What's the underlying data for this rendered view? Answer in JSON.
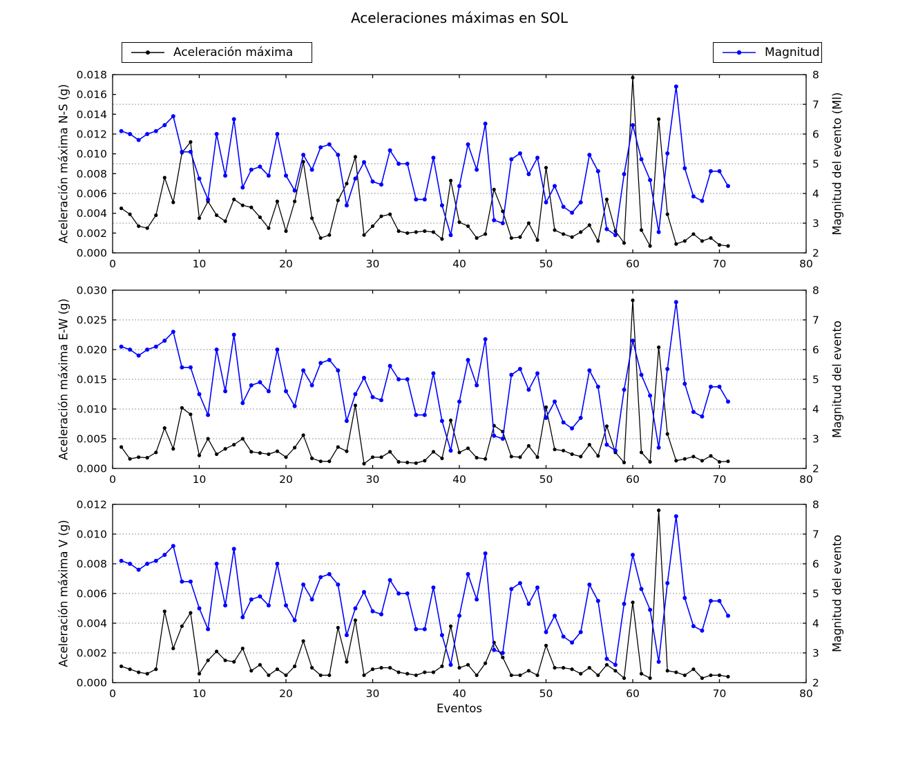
{
  "title": "Aceleraciones máximas en SOL",
  "xlabel": "Eventos",
  "legend": {
    "left": {
      "label": "Aceleración máxima",
      "color": "#000000"
    },
    "right": {
      "label": "Magnitud",
      "color": "#0000ff"
    }
  },
  "colors": {
    "acceleration": "#000000",
    "magnitude": "#0000ff",
    "grid": "#777777"
  },
  "x_ticks": [
    "0",
    "10",
    "20",
    "30",
    "40",
    "50",
    "60",
    "70",
    "80"
  ],
  "events": [
    1,
    2,
    3,
    4,
    5,
    6,
    7,
    8,
    9,
    10,
    11,
    12,
    13,
    14,
    15,
    16,
    17,
    18,
    19,
    20,
    21,
    22,
    23,
    24,
    25,
    26,
    27,
    28,
    29,
    30,
    31,
    32,
    33,
    34,
    35,
    36,
    37,
    38,
    39,
    40,
    41,
    42,
    43,
    44,
    45,
    46,
    47,
    48,
    49,
    50,
    51,
    52,
    53,
    54,
    55,
    56,
    57,
    58,
    59,
    60,
    61,
    62,
    63,
    64,
    65,
    66,
    67,
    68,
    69,
    70,
    71
  ],
  "chart_data": [
    {
      "type": "line",
      "id": "ns",
      "ylabel": "Aceleración máxima N-S (g)",
      "ylim": [
        0,
        0.018
      ],
      "yticks": [
        "0.000",
        "0.002",
        "0.004",
        "0.006",
        "0.008",
        "0.010",
        "0.012",
        "0.014",
        "0.016",
        "0.018"
      ],
      "ylabel_right": "Magnitud del evento (Ml)",
      "ylim_right": [
        2,
        8
      ],
      "yticks_right": [
        "2",
        "3",
        "4",
        "5",
        "6",
        "7",
        "8"
      ],
      "xlim": [
        0,
        80
      ],
      "grid": "horizontal dotted at right-axis ticks 3-7",
      "legend_position": "upper-left-above-axes",
      "series": [
        {
          "name": "Aceleración máxima",
          "axis": "left",
          "color": "#000000",
          "values": [
            0.0045,
            0.0039,
            0.0027,
            0.0025,
            0.0038,
            0.0076,
            0.0051,
            0.0101,
            0.0112,
            0.0035,
            0.0052,
            0.0038,
            0.0032,
            0.0054,
            0.0048,
            0.0046,
            0.0036,
            0.0025,
            0.0052,
            0.0022,
            0.0052,
            0.0092,
            0.0035,
            0.0015,
            0.0018,
            0.0053,
            0.007,
            0.0097,
            0.0018,
            0.0027,
            0.0037,
            0.0039,
            0.0022,
            0.002,
            0.0021,
            0.0022,
            0.0021,
            0.0014,
            0.0073,
            0.0031,
            0.0027,
            0.0015,
            0.0019,
            0.0064,
            0.0042,
            0.0015,
            0.0016,
            0.003,
            0.0013,
            0.0086,
            0.0023,
            0.0019,
            0.0016,
            0.0021,
            0.0028,
            0.0012,
            0.0054,
            0.0022,
            0.001,
            0.0177,
            0.0023,
            0.0007,
            0.0135,
            0.0039,
            0.0009,
            0.0012,
            0.0019,
            0.0012,
            0.0015,
            0.0008,
            0.0007
          ]
        },
        {
          "name": "Magnitud",
          "axis": "right",
          "color": "#0000ff",
          "values": [
            6.1,
            6.0,
            5.8,
            6.0,
            6.1,
            6.3,
            6.6,
            5.4,
            5.4,
            4.5,
            3.8,
            6.0,
            4.6,
            6.5,
            4.2,
            4.8,
            4.9,
            4.6,
            6.0,
            4.6,
            4.1,
            5.3,
            4.8,
            5.55,
            5.65,
            5.3,
            3.6,
            4.5,
            5.05,
            4.4,
            4.3,
            5.45,
            5.0,
            5.0,
            3.8,
            3.8,
            5.2,
            3.6,
            2.6,
            4.25,
            5.65,
            4.8,
            6.35,
            3.1,
            3.0,
            5.15,
            5.35,
            4.65,
            5.2,
            3.7,
            4.25,
            3.55,
            3.35,
            3.7,
            5.3,
            4.75,
            2.8,
            2.6,
            4.65,
            6.3,
            5.15,
            4.45,
            2.7,
            5.35,
            7.6,
            4.85,
            3.9,
            3.75,
            4.75,
            4.75,
            4.25
          ]
        }
      ]
    },
    {
      "type": "line",
      "id": "ew",
      "ylabel": "Aceleración máxima E-W (g)",
      "ylim": [
        0,
        0.03
      ],
      "yticks": [
        "0.000",
        "0.005",
        "0.010",
        "0.015",
        "0.020",
        "0.025",
        "0.030"
      ],
      "ylabel_right": "Magnitud del evento",
      "ylim_right": [
        2,
        8
      ],
      "yticks_right": [
        "2",
        "3",
        "4",
        "5",
        "6",
        "7",
        "8"
      ],
      "xlim": [
        0,
        80
      ],
      "grid": "horizontal dotted at right-axis ticks 3-7",
      "series": [
        {
          "name": "Aceleración máxima",
          "axis": "left",
          "color": "#000000",
          "values": [
            0.0036,
            0.0016,
            0.0019,
            0.0018,
            0.0027,
            0.0068,
            0.0033,
            0.0102,
            0.0091,
            0.0022,
            0.005,
            0.0024,
            0.0033,
            0.004,
            0.005,
            0.0028,
            0.0026,
            0.0024,
            0.0029,
            0.0019,
            0.0035,
            0.0056,
            0.0017,
            0.0012,
            0.0012,
            0.0036,
            0.0029,
            0.0106,
            0.0008,
            0.0019,
            0.0019,
            0.0028,
            0.0011,
            0.001,
            0.0009,
            0.0013,
            0.0028,
            0.0017,
            0.0081,
            0.0027,
            0.0034,
            0.0018,
            0.0016,
            0.0072,
            0.0062,
            0.002,
            0.0019,
            0.0038,
            0.0019,
            0.0103,
            0.0032,
            0.003,
            0.0024,
            0.002,
            0.004,
            0.0021,
            0.0071,
            0.0027,
            0.001,
            0.0283,
            0.0027,
            0.0011,
            0.0204,
            0.0058,
            0.0013,
            0.0016,
            0.002,
            0.0013,
            0.0021,
            0.0011,
            0.0012
          ]
        },
        {
          "name": "Magnitud",
          "axis": "right",
          "color": "#0000ff",
          "values": [
            6.1,
            6.0,
            5.8,
            6.0,
            6.1,
            6.3,
            6.6,
            5.4,
            5.4,
            4.5,
            3.8,
            6.0,
            4.6,
            6.5,
            4.2,
            4.8,
            4.9,
            4.6,
            6.0,
            4.6,
            4.1,
            5.3,
            4.8,
            5.55,
            5.65,
            5.3,
            3.6,
            4.5,
            5.05,
            4.4,
            4.3,
            5.45,
            5.0,
            5.0,
            3.8,
            3.8,
            5.2,
            3.6,
            2.6,
            4.25,
            5.65,
            4.8,
            6.35,
            3.1,
            3.0,
            5.15,
            5.35,
            4.65,
            5.2,
            3.7,
            4.25,
            3.55,
            3.35,
            3.7,
            5.3,
            4.75,
            2.8,
            2.6,
            4.65,
            6.3,
            5.15,
            4.45,
            2.7,
            5.35,
            7.6,
            4.85,
            3.9,
            3.75,
            4.75,
            4.75,
            4.25
          ]
        }
      ]
    },
    {
      "type": "line",
      "id": "v",
      "xlabel": "Eventos",
      "ylabel": "Aceleración máxima V (g)",
      "ylim": [
        0,
        0.012
      ],
      "yticks": [
        "0.000",
        "0.002",
        "0.004",
        "0.006",
        "0.008",
        "0.010",
        "0.012"
      ],
      "ylabel_right": "Magnitud del evento",
      "ylim_right": [
        2,
        8
      ],
      "yticks_right": [
        "2",
        "3",
        "4",
        "5",
        "6",
        "7",
        "8"
      ],
      "xlim": [
        0,
        80
      ],
      "grid": "horizontal dotted at right-axis ticks 3-7",
      "series": [
        {
          "name": "Aceleración máxima",
          "axis": "left",
          "color": "#000000",
          "values": [
            0.0011,
            0.0009,
            0.0007,
            0.0006,
            0.0009,
            0.0048,
            0.0023,
            0.0038,
            0.0047,
            0.0006,
            0.0015,
            0.0021,
            0.0015,
            0.0014,
            0.0023,
            0.0008,
            0.0012,
            0.0005,
            0.0009,
            0.0005,
            0.0011,
            0.0028,
            0.001,
            0.0005,
            0.0005,
            0.0037,
            0.0014,
            0.0042,
            0.0005,
            0.0009,
            0.001,
            0.001,
            0.0007,
            0.0006,
            0.0005,
            0.0007,
            0.0007,
            0.0011,
            0.0038,
            0.001,
            0.0012,
            0.0005,
            0.0013,
            0.0027,
            0.0017,
            0.0005,
            0.0005,
            0.0008,
            0.0005,
            0.0025,
            0.001,
            0.001,
            0.0009,
            0.0006,
            0.001,
            0.0005,
            0.0012,
            0.0008,
            0.0003,
            0.0054,
            0.0006,
            0.0003,
            0.0116,
            0.0008,
            0.0007,
            0.0005,
            0.0009,
            0.0003,
            0.0005,
            0.0005,
            0.0004
          ]
        },
        {
          "name": "Magnitud",
          "axis": "right",
          "color": "#0000ff",
          "values": [
            6.1,
            6.0,
            5.8,
            6.0,
            6.1,
            6.3,
            6.6,
            5.4,
            5.4,
            4.5,
            3.8,
            6.0,
            4.6,
            6.5,
            4.2,
            4.8,
            4.9,
            4.6,
            6.0,
            4.6,
            4.1,
            5.3,
            4.8,
            5.55,
            5.65,
            5.3,
            3.6,
            4.5,
            5.05,
            4.4,
            4.3,
            5.45,
            5.0,
            5.0,
            3.8,
            3.8,
            5.2,
            3.6,
            2.6,
            4.25,
            5.65,
            4.8,
            6.35,
            3.1,
            3.0,
            5.15,
            5.35,
            4.65,
            5.2,
            3.7,
            4.25,
            3.55,
            3.35,
            3.7,
            5.3,
            4.75,
            2.8,
            2.6,
            4.65,
            6.3,
            5.15,
            4.45,
            2.7,
            5.35,
            7.6,
            4.85,
            3.9,
            3.75,
            4.75,
            4.75,
            4.25
          ]
        }
      ]
    }
  ]
}
